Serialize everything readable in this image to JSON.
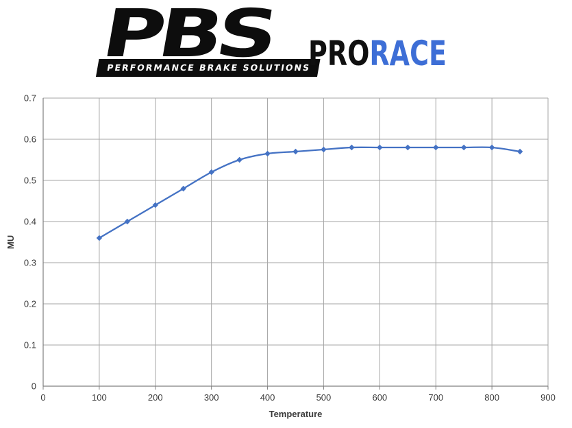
{
  "logo": {
    "brand": "PBS",
    "tagline": "PERFORMANCE BRAKE SOLUTIONS",
    "product_pro": "PRO",
    "product_race": "RACE",
    "brand_color": "#0d0d0d",
    "race_color": "#3d6ed6"
  },
  "chart_data": {
    "type": "line",
    "series": [
      {
        "name": "MU",
        "x": [
          100,
          150,
          200,
          250,
          300,
          350,
          400,
          450,
          500,
          550,
          600,
          650,
          700,
          750,
          800,
          850
        ],
        "y": [
          0.36,
          0.4,
          0.44,
          0.48,
          0.52,
          0.55,
          0.565,
          0.57,
          0.575,
          0.58,
          0.58,
          0.58,
          0.58,
          0.58,
          0.58,
          0.57
        ]
      }
    ],
    "title": "",
    "xlabel": "Temperature",
    "ylabel": "MU",
    "xlim": [
      0,
      900
    ],
    "ylim": [
      0,
      0.7
    ],
    "x_ticks": [
      0,
      100,
      200,
      300,
      400,
      500,
      600,
      700,
      800,
      900
    ],
    "y_ticks": [
      0,
      0.1,
      0.2,
      0.3,
      0.4,
      0.5,
      0.6,
      0.7
    ],
    "grid": true,
    "legend": "none",
    "line_color": "#4472c4",
    "marker": "diamond",
    "marker_color": "#4472c4",
    "grid_color": "#a6a6a6",
    "axis_color": "#7f7f7f",
    "label_color": "#3a3a3a",
    "smooth": true
  }
}
